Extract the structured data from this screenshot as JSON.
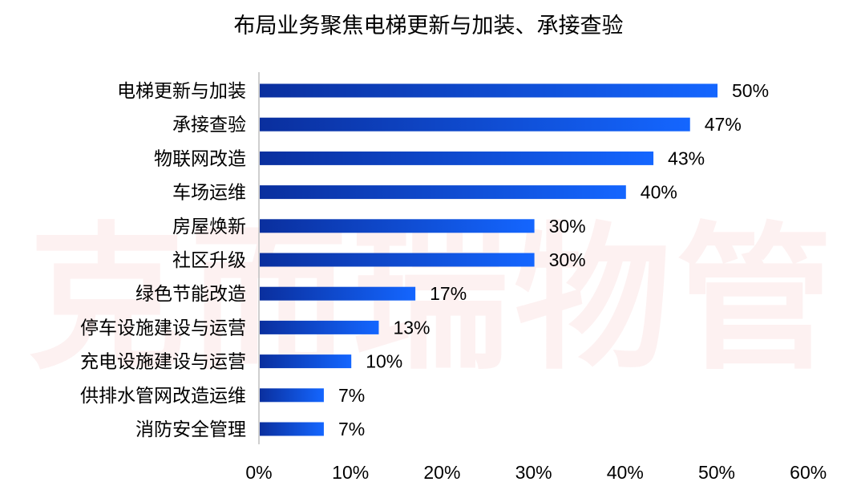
{
  "chart_data": {
    "type": "bar",
    "orientation": "horizontal",
    "title": "布局业务聚焦电梯更新与加装、承接查验",
    "watermark": "克而瑞物管",
    "categories": [
      "电梯更新与加装",
      "承接查验",
      "物联网改造",
      "车场运维",
      "房屋焕新",
      "社区升级",
      "绿色节能改造",
      "停车设施建设与运营",
      "充电设施建设与运营",
      "供排水管网改造运维",
      "消防安全管理"
    ],
    "values": [
      50,
      47,
      43,
      40,
      30,
      30,
      17,
      13,
      10,
      7,
      7
    ],
    "value_labels": [
      "50%",
      "47%",
      "43%",
      "40%",
      "30%",
      "30%",
      "17%",
      "13%",
      "10%",
      "7%",
      "7%"
    ],
    "xlim": [
      0,
      60
    ],
    "x_ticks": [
      "0%",
      "10%",
      "20%",
      "30%",
      "40%",
      "50%",
      "60%"
    ],
    "xlabel": "",
    "ylabel": "",
    "grid": false,
    "legend": "none",
    "colors": {
      "bar_start": "#0a2f9e",
      "bar_end": "#1466ff",
      "axis": "#bfbfbf"
    }
  }
}
